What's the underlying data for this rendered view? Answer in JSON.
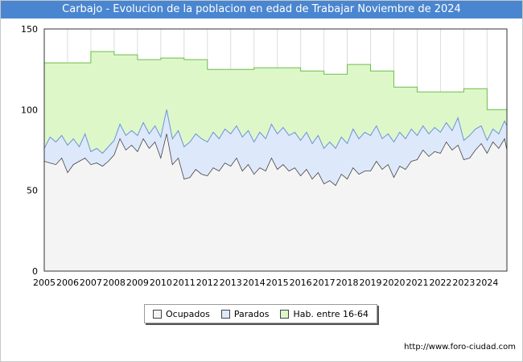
{
  "chart_data": {
    "type": "area",
    "title": "Carbajo - Evolucion de la poblacion en edad de Trabajar Noviembre de 2024",
    "xlabel": "",
    "ylabel": "",
    "x_ticks": [
      "2005",
      "2006",
      "2007",
      "2008",
      "2009",
      "2010",
      "2011",
      "2012",
      "2013",
      "2014",
      "2015",
      "2016",
      "2017",
      "2018",
      "2019",
      "2020",
      "2021",
      "2022",
      "2023",
      "2024"
    ],
    "x_range": [
      2005,
      2024.85
    ],
    "ylim": [
      0,
      150
    ],
    "y_ticks": [
      0,
      50,
      100,
      150
    ],
    "grid": true,
    "legend_position": "bottom",
    "series": [
      {
        "name": "Hab. entre 16-64",
        "color": "#ddf7c9",
        "line_color": "#6bbf4c",
        "x": [
          2005,
          2006,
          2007,
          2008,
          2009,
          2010,
          2011,
          2012,
          2013,
          2014,
          2015,
          2016,
          2017,
          2018,
          2019,
          2020,
          2021,
          2022,
          2023,
          2024
        ],
        "values": [
          129,
          129,
          136,
          134,
          131,
          132,
          131,
          125,
          125,
          126,
          126,
          124,
          122,
          128,
          124,
          114,
          111,
          111,
          113,
          100
        ]
      },
      {
        "name": "Parados",
        "color": "#dde9fb",
        "line_color": "#6c93d6",
        "x": [
          2005,
          2005.25,
          2005.5,
          2005.75,
          2006,
          2006.25,
          2006.5,
          2006.75,
          2007,
          2007.25,
          2007.5,
          2007.75,
          2008,
          2008.25,
          2008.5,
          2008.75,
          2009,
          2009.25,
          2009.5,
          2009.75,
          2010,
          2010.25,
          2010.5,
          2010.75,
          2011,
          2011.25,
          2011.5,
          2011.75,
          2012,
          2012.25,
          2012.5,
          2012.75,
          2013,
          2013.25,
          2013.5,
          2013.75,
          2014,
          2014.25,
          2014.5,
          2014.75,
          2015,
          2015.25,
          2015.5,
          2015.75,
          2016,
          2016.25,
          2016.5,
          2016.75,
          2017,
          2017.25,
          2017.5,
          2017.75,
          2018,
          2018.25,
          2018.5,
          2018.75,
          2019,
          2019.25,
          2019.5,
          2019.75,
          2020,
          2020.25,
          2020.5,
          2020.75,
          2021,
          2021.25,
          2021.5,
          2021.75,
          2022,
          2022.25,
          2022.5,
          2022.75,
          2023,
          2023.25,
          2023.5,
          2023.75,
          2024,
          2024.25,
          2024.5,
          2024.75,
          2024.85
        ],
        "values": [
          76,
          83,
          80,
          84,
          78,
          82,
          77,
          85,
          74,
          76,
          73,
          77,
          81,
          91,
          84,
          87,
          84,
          92,
          85,
          90,
          83,
          100,
          82,
          87,
          77,
          80,
          85,
          82,
          80,
          86,
          82,
          88,
          85,
          90,
          83,
          87,
          80,
          86,
          82,
          91,
          85,
          89,
          84,
          86,
          81,
          86,
          79,
          84,
          76,
          80,
          76,
          83,
          79,
          88,
          82,
          86,
          84,
          90,
          82,
          85,
          80,
          86,
          82,
          88,
          84,
          90,
          85,
          89,
          86,
          92,
          87,
          95,
          81,
          84,
          88,
          90,
          81,
          88,
          85,
          93,
          90
        ]
      },
      {
        "name": "Ocupados",
        "color": "#f4f4f4",
        "line_color": "#444444",
        "x": [
          2005,
          2005.25,
          2005.5,
          2005.75,
          2006,
          2006.25,
          2006.5,
          2006.75,
          2007,
          2007.25,
          2007.5,
          2007.75,
          2008,
          2008.25,
          2008.5,
          2008.75,
          2009,
          2009.25,
          2009.5,
          2009.75,
          2010,
          2010.25,
          2010.5,
          2010.75,
          2011,
          2011.25,
          2011.5,
          2011.75,
          2012,
          2012.25,
          2012.5,
          2012.75,
          2013,
          2013.25,
          2013.5,
          2013.75,
          2014,
          2014.25,
          2014.5,
          2014.75,
          2015,
          2015.25,
          2015.5,
          2015.75,
          2016,
          2016.25,
          2016.5,
          2016.75,
          2017,
          2017.25,
          2017.5,
          2017.75,
          2018,
          2018.25,
          2018.5,
          2018.75,
          2019,
          2019.25,
          2019.5,
          2019.75,
          2020,
          2020.25,
          2020.5,
          2020.75,
          2021,
          2021.25,
          2021.5,
          2021.75,
          2022,
          2022.25,
          2022.5,
          2022.75,
          2023,
          2023.25,
          2023.5,
          2023.75,
          2024,
          2024.25,
          2024.5,
          2024.75,
          2024.85
        ],
        "values": [
          68,
          67,
          66,
          70,
          61,
          66,
          68,
          70,
          66,
          67,
          65,
          68,
          72,
          82,
          75,
          78,
          74,
          82,
          76,
          80,
          70,
          85,
          66,
          70,
          57,
          58,
          63,
          60,
          59,
          64,
          62,
          67,
          65,
          70,
          62,
          66,
          60,
          64,
          62,
          70,
          63,
          66,
          62,
          64,
          59,
          63,
          57,
          61,
          54,
          56,
          53,
          60,
          57,
          64,
          60,
          62,
          62,
          68,
          63,
          66,
          58,
          65,
          63,
          68,
          69,
          75,
          71,
          74,
          73,
          80,
          75,
          78,
          69,
          70,
          75,
          79,
          73,
          80,
          76,
          82,
          75
        ]
      }
    ]
  },
  "source": "http://www.foro-ciudad.com"
}
